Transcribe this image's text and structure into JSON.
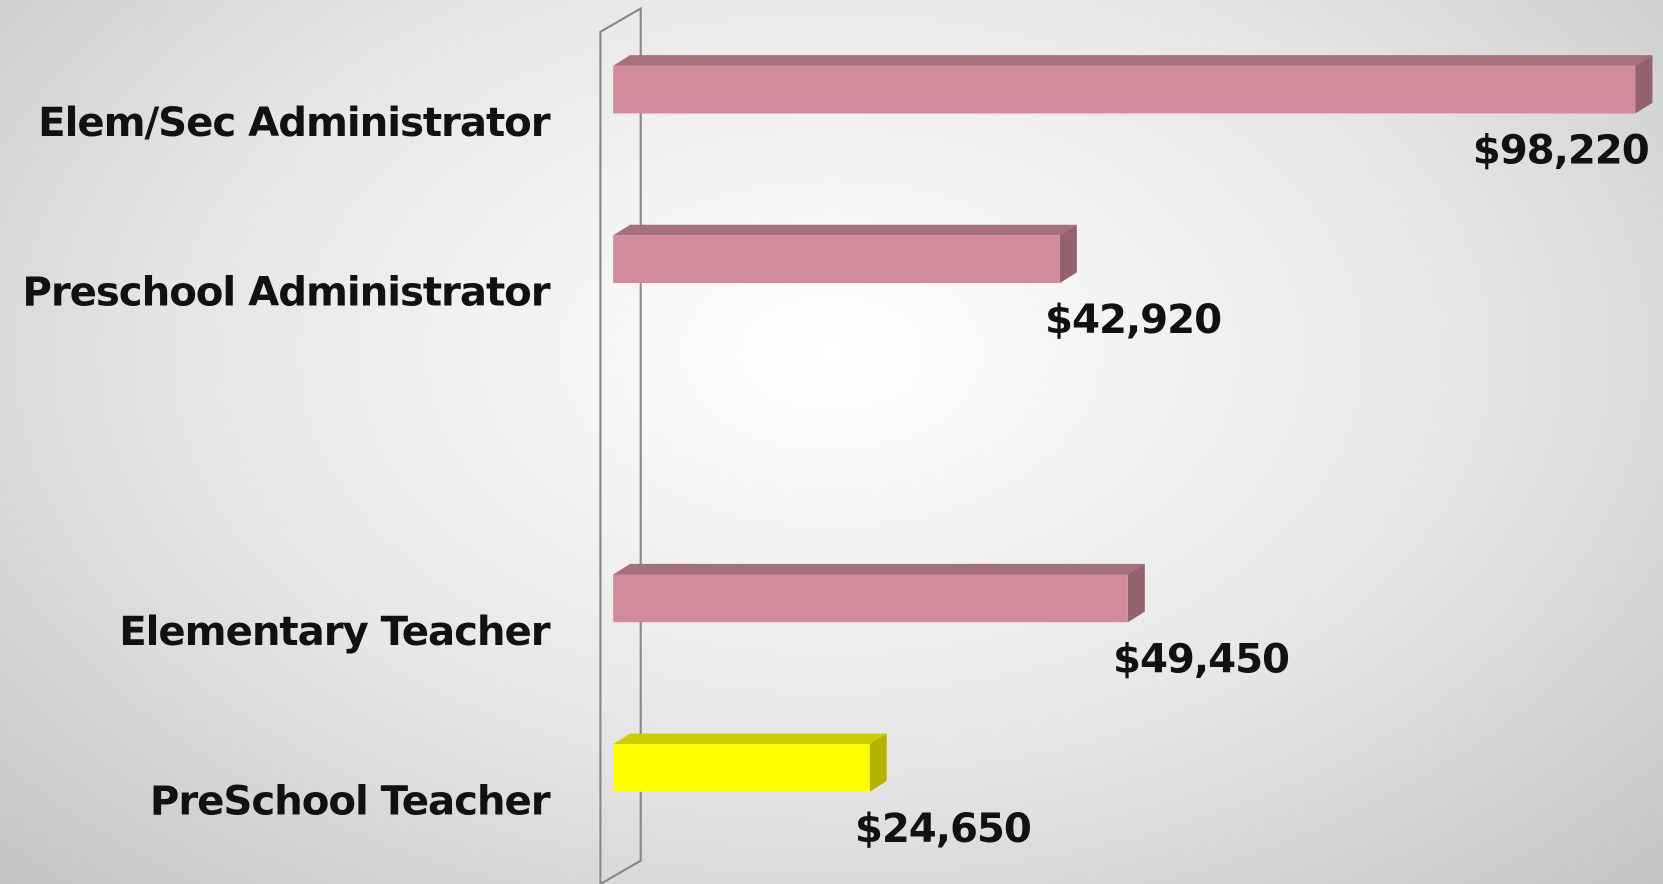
{
  "chart_data": {
    "type": "bar3d_horizontal",
    "categories": [
      "Elem/Sec Administrator",
      "Preschool Administrator",
      null,
      "Elementary Teacher",
      "PreSchool Teacher"
    ],
    "values": [
      98220,
      42920,
      null,
      49450,
      24650
    ],
    "value_labels": [
      "$98,220",
      "$42,920",
      null,
      "$49,450",
      "$24,650"
    ],
    "colors": [
      "#d08c9c",
      "#d08c9c",
      null,
      "#d08c9c",
      "#ffff00"
    ],
    "xlim": [
      0,
      100000
    ]
  }
}
